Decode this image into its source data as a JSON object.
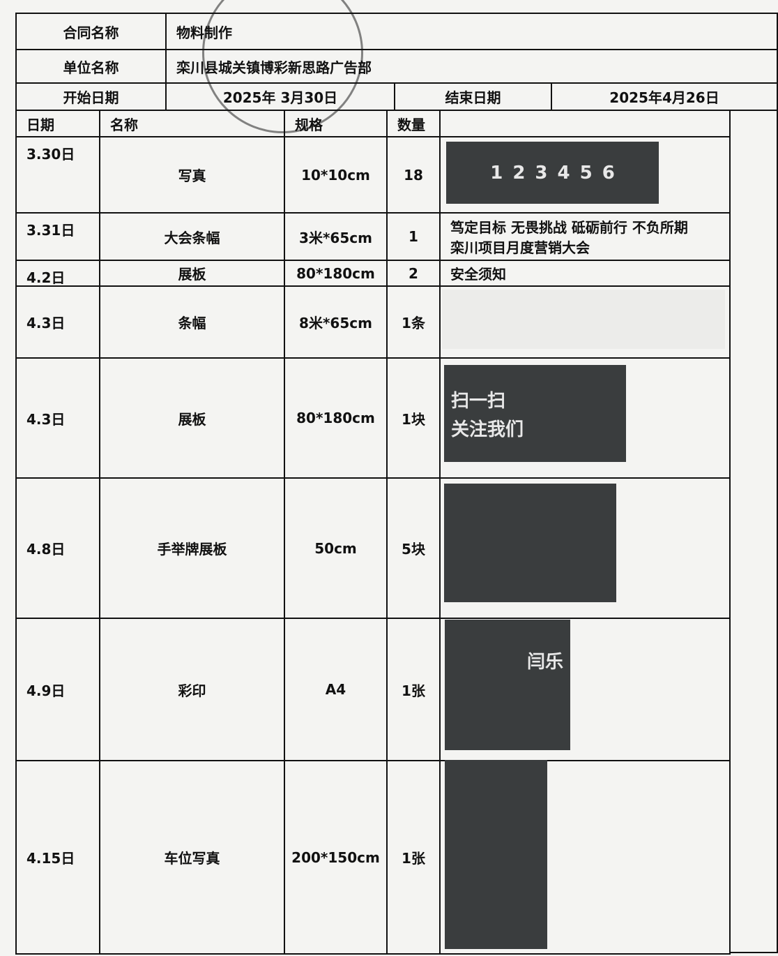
{
  "header": {
    "contract_label": "合同名称",
    "contract_value": "物料制作",
    "unit_label": "单位名称",
    "unit_value": "栾川县城关镇博彩新思路广告部",
    "start_label": "开始日期",
    "start_value": "2025年 3月30日",
    "end_label": "结束日期",
    "end_value": "2025年4月26日"
  },
  "table": {
    "columns": [
      "日期",
      "名称",
      "规格",
      "数量"
    ],
    "rows": [
      {
        "date": "3.30日",
        "name": "写真",
        "spec": "10*10cm",
        "qty": "18",
        "image_text": [
          "1",
          "2",
          "3",
          "4",
          "5",
          "6"
        ]
      },
      {
        "date": "3.31日",
        "name": "大会条幅",
        "spec": "3米*65cm",
        "qty": "1",
        "text": [
          "笃定目标 无畏挑战 砥砺前行 不负所期",
          "栾川项目月度营销大会"
        ]
      },
      {
        "date": "4.2日",
        "name": "展板",
        "spec": "80*180cm",
        "qty": "2",
        "text": [
          "安全须知"
        ]
      },
      {
        "date": "4.3日",
        "name": "条幅",
        "spec": "8米*65cm",
        "qty": "1条"
      },
      {
        "date": "4.3日",
        "name": "展板",
        "spec": "80*180cm",
        "qty": "1块",
        "image_text": [
          "扫一扫",
          "关注我们"
        ]
      },
      {
        "date": "4.8日",
        "name": "手举牌展板",
        "spec": "50cm",
        "qty": "5块"
      },
      {
        "date": "4.9日",
        "name": "彩印",
        "spec": "A4",
        "qty": "1张",
        "image_text": [
          "闫乐"
        ]
      },
      {
        "date": "4.15日",
        "name": "车位写真",
        "spec": "200*150cm",
        "qty": "1张"
      }
    ]
  }
}
